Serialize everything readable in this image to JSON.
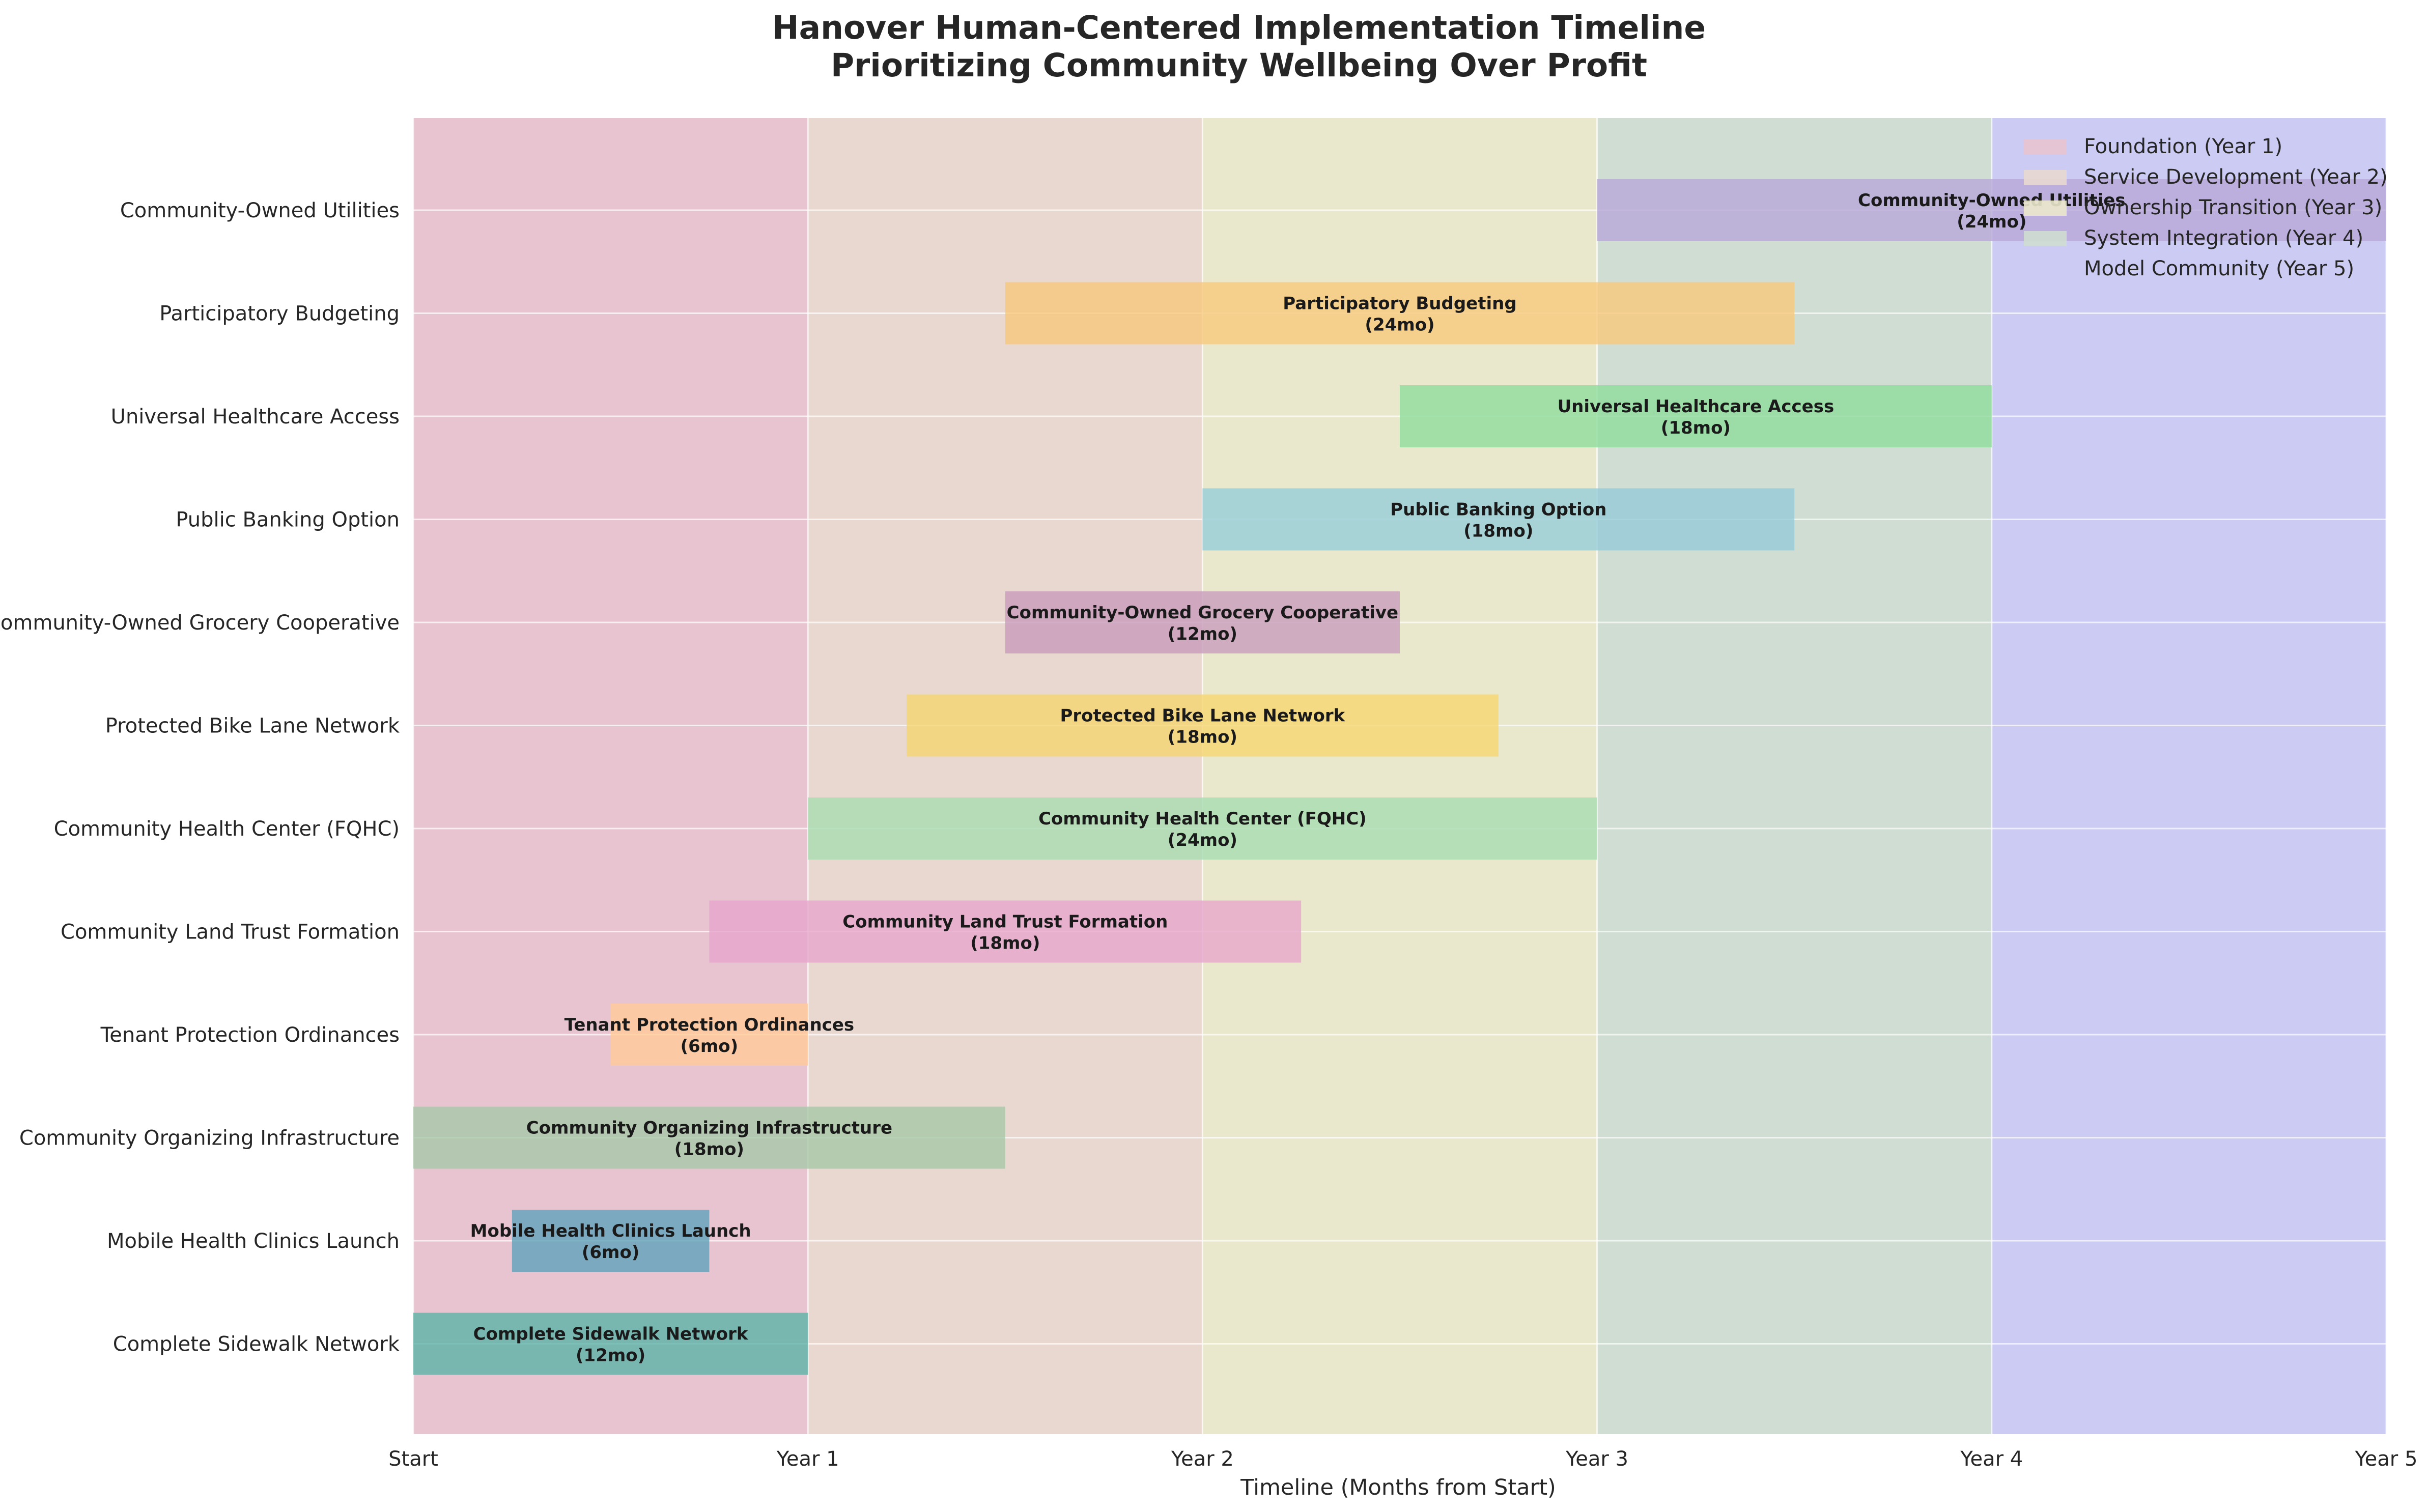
{
  "chart_data": {
    "type": "gantt",
    "title_line1": "Hanover Human-Centered Implementation Timeline",
    "title_line2": "Prioritizing Community Wellbeing Over Profit",
    "xlabel": "Timeline (Months from Start)",
    "x_unit": "months",
    "xlim": [
      0,
      60
    ],
    "x_ticks": [
      {
        "value": 0,
        "label": "Start"
      },
      {
        "value": 12,
        "label": "Year 1"
      },
      {
        "value": 24,
        "label": "Year 2"
      },
      {
        "value": 36,
        "label": "Year 3"
      },
      {
        "value": 48,
        "label": "Year 4"
      },
      {
        "value": 60,
        "label": "Year 5"
      }
    ],
    "grid": true,
    "legend_position": "top-right",
    "phases": [
      {
        "name": "Foundation (Year 1)",
        "start": 0,
        "end": 12,
        "color": "#E8C4D0"
      },
      {
        "name": "Service Development (Year 2)",
        "start": 12,
        "end": 24,
        "color": "#E8D8D0"
      },
      {
        "name": "Ownership Transition (Year 3)",
        "start": 24,
        "end": 36,
        "color": "#EAE8CC"
      },
      {
        "name": "System Integration (Year 4)",
        "start": 36,
        "end": 48,
        "color": "#CFDDD2"
      },
      {
        "name": "Model Community (Year 5)",
        "start": 48,
        "end": 60,
        "color": "#CBCBF4"
      }
    ],
    "tasks": [
      {
        "name": "Complete Sidewalk Network",
        "start": 0,
        "duration": 12,
        "duration_label": "(12mo)",
        "color": "#5AB4A8"
      },
      {
        "name": "Mobile Health Clinics Launch",
        "start": 3,
        "duration": 6,
        "duration_label": "(6mo)",
        "color": "#5FA2BA"
      },
      {
        "name": "Community Organizing Infrastructure",
        "start": 0,
        "duration": 18,
        "duration_label": "(18mo)",
        "color": "#A6C8A8"
      },
      {
        "name": "Tenant Protection Ordinances",
        "start": 6,
        "duration": 6,
        "duration_label": "(6mo)",
        "color": "#FFCC99"
      },
      {
        "name": "Community Land Trust Formation",
        "start": 9,
        "duration": 18,
        "duration_label": "(18mo)",
        "color": "#E6A6CC"
      },
      {
        "name": "Community Health Center (FQHC)",
        "start": 12,
        "duration": 24,
        "duration_label": "(24mo)",
        "color": "#A8DCB0"
      },
      {
        "name": "Protected Bike Lane Network",
        "start": 15,
        "duration": 18,
        "duration_label": "(18mo)",
        "color": "#F5D670"
      },
      {
        "name": "Community-Owned Grocery Cooperative",
        "start": 18,
        "duration": 12,
        "duration_label": "(12mo)",
        "color": "#C89CBC"
      },
      {
        "name": "Public Banking Option",
        "start": 24,
        "duration": 18,
        "duration_label": "(18mo)",
        "color": "#96CCD8"
      },
      {
        "name": "Universal Healthcare Access",
        "start": 30,
        "duration": 18,
        "duration_label": "(18mo)",
        "color": "#8EDC9C"
      },
      {
        "name": "Participatory Budgeting",
        "start": 18,
        "duration": 24,
        "duration_label": "(24mo)",
        "color": "#F8C87C"
      },
      {
        "name": "Community-Owned Utilities",
        "start": 36,
        "duration": 24,
        "duration_label": "(24mo)",
        "color": "#B8A8D8"
      }
    ]
  }
}
